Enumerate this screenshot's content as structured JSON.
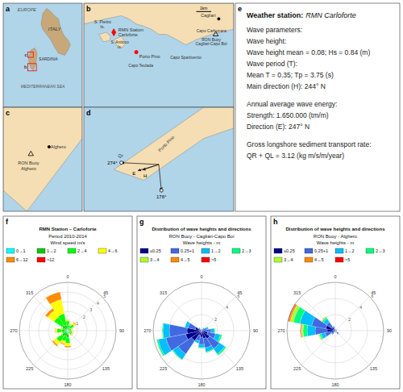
{
  "chart_data": [
    {
      "type": "map",
      "panel_label": "a",
      "colors": [
        "#B0D4E8",
        "#C8A878"
      ],
      "annotations": [
        "ITALY",
        "SARDINIA",
        "MEDITERRANEAN SEA",
        "EUROPE",
        "b",
        "c"
      ]
    },
    {
      "type": "map",
      "panel_label": "b",
      "colors": [
        "#B0D4E8",
        "#F5DEB3"
      ],
      "annotations": [
        "S. Pietro\nIs.",
        "RMN Station\nCarloforte",
        "S. Antioco\nIs.",
        "Porto Pino",
        "Capo Teulada",
        "Capo Spartivento",
        "Cagliari",
        "Capo Carbonara",
        "RON Buoy\nCagliari-Capo Boi",
        "1km"
      ]
    },
    {
      "type": "map",
      "panel_label": "c",
      "colors": [
        "#B0D4E8",
        "#F5DEB3"
      ],
      "annotations": [
        "RON Buoy\nAlghero",
        "Alghero"
      ]
    },
    {
      "type": "map",
      "panel_label": "d",
      "colors": [
        "#B0D4E8",
        "#F5DEB3"
      ],
      "annotations": [
        "Porto Pino",
        "Qr"
      ],
      "directions": [
        {
          "value": 274,
          "label": "274°"
        },
        {
          "value": 176,
          "label": "176°"
        },
        {
          "value": 247,
          "label": "E"
        },
        {
          "value": 244,
          "label": "H"
        }
      ]
    },
    {
      "type": "text",
      "panel_label": "e",
      "title": "Weather station:",
      "subtitle": "RMN Carloforte",
      "annotations": [
        [
          "Wave parameters:",
          "Wave height:",
          "Wave height mean = 0.08; Hs = 0.84 (m)",
          "Wave period (T):",
          "Mean T = 0.35; Tp = 3.75 (s)",
          "Main direction (H): 244° N"
        ],
        [
          "Annual average wave energy:",
          "Strength: 1.650.000 (tm/m)",
          "Direction (E): 247° N"
        ],
        [
          "Gross longshore sediment transport rate:",
          "QR + QL = 3.12 (kg m/s/m/year)"
        ]
      ]
    },
    {
      "type": "polar_bar",
      "panel_label": "f",
      "title": "RMN Station – Carloforte",
      "subtitle": "Period 2010-2014",
      "annotations": [
        "Wind speed m/s"
      ],
      "stacked": true,
      "legend": "top",
      "grid": true,
      "x": [
        0,
        22.5,
        45,
        67.5,
        90,
        112.5,
        135,
        157.5,
        180,
        202.5,
        225,
        247.5,
        270,
        292.5,
        315,
        337.5
      ],
      "xlim": [
        0,
        360
      ],
      "xticks": [
        0,
        45,
        90,
        135,
        180,
        225,
        270,
        315
      ],
      "ylim": [
        0,
        5
      ],
      "yticks": [
        1,
        2,
        3,
        4,
        5
      ],
      "series": [
        {
          "name": "0→1",
          "color": "#00FFFF",
          "values": [
            0.2,
            0.1,
            0.1,
            0.1,
            0.1,
            0.2,
            0.2,
            0.1,
            0.2,
            0.2,
            0.2,
            0.1,
            0.2,
            0.1,
            0.2,
            0.2
          ]
        },
        {
          "name": "1→2",
          "color": "#00CC00",
          "values": [
            0.3,
            0.2,
            0.2,
            0.1,
            0.1,
            0.1,
            0.1,
            0.1,
            0.5,
            0.4,
            0.5,
            0.2,
            0.4,
            0.2,
            0.5,
            0.4
          ]
        },
        {
          "name": "2→4",
          "color": "#00FF00",
          "values": [
            0.5,
            0.3,
            0.5,
            0.2,
            0.2,
            0.2,
            0.2,
            0.1,
            0.6,
            0.5,
            0.7,
            0.3,
            0.5,
            0.3,
            1.0,
            1.2
          ]
        },
        {
          "name": "4→6",
          "color": "#FFFF00",
          "values": [
            0.1,
            0.1,
            0.2,
            0.1,
            0.1,
            0.1,
            0.1,
            0.05,
            0.3,
            0.3,
            0.4,
            0.1,
            0.2,
            0.1,
            0.8,
            1.5
          ]
        },
        {
          "name": "6→12",
          "color": "#FF8C00",
          "values": [
            0.05,
            0.05,
            0.1,
            0.05,
            0.05,
            0.05,
            0.05,
            0.02,
            0.15,
            0.1,
            0.15,
            0.05,
            0.05,
            0.05,
            0.3,
            0.8
          ]
        },
        {
          "name": ">12",
          "color": "#FF0000",
          "values": [
            0.0,
            0.0,
            0.0,
            0.0,
            0.0,
            0.0,
            0.0,
            0.0,
            0.0,
            0.0,
            0.0,
            0.0,
            0.0,
            0.0,
            0.0,
            0.0
          ]
        }
      ]
    },
    {
      "type": "polar_bar",
      "panel_label": "g",
      "title": "Distribution of wave heights and directions",
      "subtitle": "RON Buoy - Cagliari-Capo Boi",
      "annotations": [
        "Wave heights - m"
      ],
      "stacked": true,
      "legend": "top",
      "grid": true,
      "x": [
        0,
        22.5,
        45,
        67.5,
        90,
        112.5,
        135,
        157.5,
        180,
        202.5,
        225,
        247.5,
        270,
        292.5,
        315,
        337.5
      ],
      "xlim": [
        0,
        360
      ],
      "xticks": [
        0,
        45,
        90,
        135,
        180,
        225,
        270,
        315
      ],
      "ylim": [
        0,
        6
      ],
      "yticks": [
        2,
        4,
        6
      ],
      "series": [
        {
          "name": "≤0.25",
          "color": "#00008B",
          "values": [
            0.1,
            0.1,
            0.2,
            0.3,
            0.5,
            0.8,
            1.2,
            1.0,
            0.8,
            0.6,
            1.5,
            2.0,
            1.8,
            0.8,
            0.2,
            0.1
          ]
        },
        {
          "name": "0.25+1",
          "color": "#4169E1",
          "values": [
            0.1,
            0.1,
            0.2,
            0.4,
            0.7,
            1.0,
            1.5,
            1.2,
            0.9,
            0.7,
            2.0,
            2.5,
            2.2,
            0.9,
            0.2,
            0.1
          ]
        },
        {
          "name": "1→2",
          "color": "#00BFFF",
          "values": [
            0.05,
            0.1,
            0.1,
            0.2,
            0.4,
            0.6,
            0.8,
            0.5,
            0.4,
            0.3,
            0.8,
            1.0,
            0.8,
            0.4,
            0.1,
            0.05
          ]
        },
        {
          "name": "2→3",
          "color": "#00FF7F",
          "values": [
            0.0,
            0.0,
            0.0,
            0.05,
            0.1,
            0.2,
            0.2,
            0.1,
            0.1,
            0.05,
            0.1,
            0.2,
            0.1,
            0.05,
            0.0,
            0.0
          ]
        },
        {
          "name": "3→4",
          "color": "#ADFF2F",
          "values": [
            0.0,
            0.0,
            0.0,
            0.0,
            0.05,
            0.05,
            0.05,
            0.05,
            0.05,
            0.0,
            0.05,
            0.05,
            0.05,
            0.0,
            0.0,
            0.0
          ]
        },
        {
          "name": "4→5",
          "color": "#FF8C00",
          "values": [
            0.0,
            0.0,
            0.0,
            0.0,
            0.0,
            0.0,
            0.0,
            0.0,
            0.0,
            0.0,
            0.0,
            0.0,
            0.0,
            0.0,
            0.0,
            0.0
          ]
        },
        {
          "name": ">5",
          "color": "#FF0000",
          "values": [
            0.0,
            0.0,
            0.0,
            0.0,
            0.0,
            0.0,
            0.0,
            0.0,
            0.0,
            0.0,
            0.0,
            0.0,
            0.0,
            0.0,
            0.0,
            0.0
          ]
        }
      ]
    },
    {
      "type": "polar_bar",
      "panel_label": "h",
      "title": "Distribution of wave heights and directions",
      "subtitle": "RON Buoy - Alghero",
      "annotations": [
        "Wave heights - m"
      ],
      "stacked": true,
      "legend": "top",
      "grid": true,
      "x": [
        0,
        22.5,
        45,
        67.5,
        90,
        112.5,
        135,
        157.5,
        180,
        202.5,
        225,
        247.5,
        270,
        292.5,
        315,
        337.5
      ],
      "xlim": [
        0,
        360
      ],
      "xticks": [
        0,
        45,
        90,
        135,
        180,
        225,
        270,
        315
      ],
      "ylim": [
        0,
        6
      ],
      "yticks": [
        2,
        4,
        6
      ],
      "series": [
        {
          "name": "≤0.25",
          "color": "#00008B",
          "values": [
            0.1,
            0.1,
            0.1,
            0.1,
            0.1,
            0.1,
            0.2,
            0.1,
            0.1,
            0.1,
            0.2,
            0.5,
            1.0,
            1.2,
            0.5,
            0.2
          ]
        },
        {
          "name": "0.25+1",
          "color": "#4169E1",
          "values": [
            0.1,
            0.1,
            0.1,
            0.1,
            0.1,
            0.1,
            0.3,
            0.1,
            0.1,
            0.1,
            0.3,
            0.8,
            1.5,
            1.8,
            0.8,
            0.3
          ]
        },
        {
          "name": "1→2",
          "color": "#00BFFF",
          "values": [
            0.05,
            0.05,
            0.05,
            0.05,
            0.05,
            0.05,
            0.1,
            0.05,
            0.05,
            0.05,
            0.1,
            0.5,
            1.0,
            1.5,
            0.5,
            0.1
          ]
        },
        {
          "name": "2→3",
          "color": "#00FF7F",
          "values": [
            0.0,
            0.0,
            0.0,
            0.0,
            0.0,
            0.0,
            0.0,
            0.0,
            0.0,
            0.0,
            0.05,
            0.2,
            0.5,
            0.8,
            0.2,
            0.05
          ]
        },
        {
          "name": "3→4",
          "color": "#ADFF2F",
          "values": [
            0.0,
            0.0,
            0.0,
            0.0,
            0.0,
            0.0,
            0.0,
            0.0,
            0.0,
            0.0,
            0.0,
            0.1,
            0.2,
            0.4,
            0.1,
            0.0
          ]
        },
        {
          "name": "4→5",
          "color": "#FF8C00",
          "values": [
            0.0,
            0.0,
            0.0,
            0.0,
            0.0,
            0.0,
            0.0,
            0.0,
            0.0,
            0.0,
            0.0,
            0.05,
            0.1,
            0.2,
            0.05,
            0.0
          ]
        },
        {
          "name": ">5",
          "color": "#FF0000",
          "values": [
            0.0,
            0.0,
            0.0,
            0.0,
            0.0,
            0.0,
            0.0,
            0.0,
            0.0,
            0.0,
            0.0,
            0.0,
            0.05,
            0.1,
            0.0,
            0.0
          ]
        }
      ]
    }
  ]
}
